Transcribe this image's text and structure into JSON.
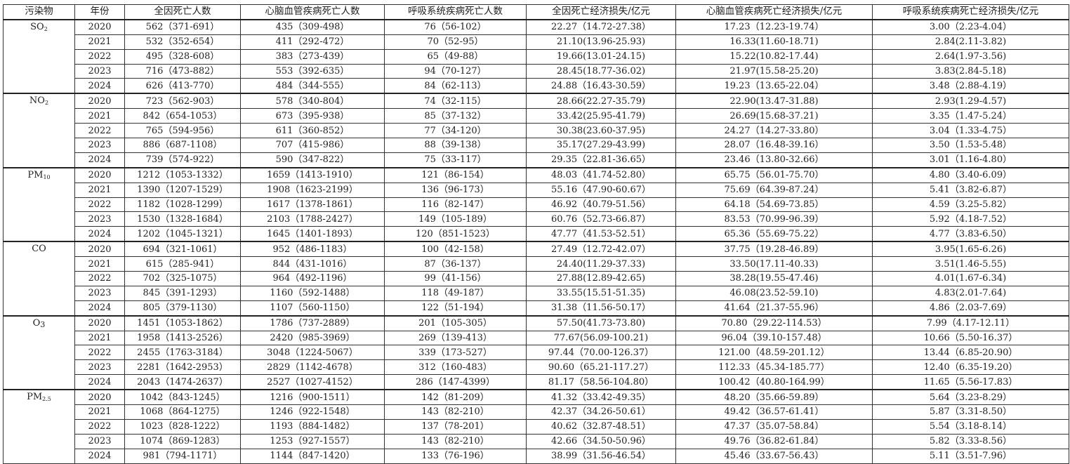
{
  "table": {
    "headers": [
      "污染物",
      "年份",
      "全因死亡人数",
      "心脑血管疾病死亡人数",
      "呼吸系统疾病死亡人数",
      "全因死亡经济损失/亿元",
      "心脑血管疾病死亡经济损失/亿元",
      "呼吸系统疾病死亡经济损失/亿元"
    ],
    "groups": [
      {
        "pollutant": {
          "base": "SO",
          "sub": "2"
        },
        "rows": [
          [
            "2020",
            "562（371-691）",
            "435（309-498）",
            "76（56-102）",
            "22.27（14.72-27.38）",
            "17.23（12.23-19.74）",
            "3.00（2.23-4.04）"
          ],
          [
            "2021",
            "532（352-654）",
            "411（292-472）",
            "70（52-95）",
            "21.10(13.96-25.93)",
            "16.33(11.60-18.71)",
            "2.84(2.11-3.82)"
          ],
          [
            "2022",
            "495（328-608）",
            "383（273-439）",
            "65（49-88）",
            "19.66(13.01-24.15)",
            "15.22(10.82-17.44)",
            "2.64(1.97-3.56)"
          ],
          [
            "2023",
            "716（473-882）",
            "553（392-635）",
            "94（70-127）",
            "28.45(18.77-36.02)",
            "21.97(15.58-25.20)",
            "3.83(2.84-5.18)"
          ],
          [
            "2024",
            "626（413-770）",
            "484（344-555）",
            "84（62-113）",
            "24.88（16.43-30.59）",
            "19.23（13.65-22.04）",
            "3.48（2.88-4.19）"
          ]
        ]
      },
      {
        "pollutant": {
          "base": "NO",
          "sub": "2"
        },
        "rows": [
          [
            "2020",
            "723（562-903）",
            "578（340-804）",
            "74（32-115）",
            "28.66(22.27-35.79)",
            "22.90(13.47-31.88)",
            "2.93(1.29-4.57)"
          ],
          [
            "2021",
            "842（654-1053）",
            "673（395-938）",
            "85（37-132）",
            "33.42(25.95-41.79)",
            "26.69(15.68-37.21)",
            "3.35（1.47-5.24）"
          ],
          [
            "2022",
            "765（594-956）",
            "611（360-852）",
            "77（34-120）",
            "30.38(23.60-37.95)",
            "24.27（14.27-33.80）",
            "3.04（1.33-4.75）"
          ],
          [
            "2023",
            "886（687-1108）",
            "707（415-986）",
            "88（39-138）",
            "35.17(27.29-43.99)",
            "28.07（16.48-39.16）",
            "3.50（1.53-5.48）"
          ],
          [
            "2024",
            "739（574-922）",
            "590（347-822）",
            "75（33-117）",
            "29.35（22.81-36.65）",
            "23.46（13.80-32.66）",
            "3.01（1.16-4.80）"
          ]
        ]
      },
      {
        "pollutant": {
          "base": "PM",
          "sub": "10"
        },
        "rows": [
          [
            "2020",
            "1212（1053-1332）",
            "1659（1413-1910）",
            "121（86-154）",
            "48.03（41.74-52.80）",
            "65.75（56.01-75.70）",
            "4.80（3.40-6.09）"
          ],
          [
            "2021",
            "1390（1207-1529）",
            "1908（1623-2199）",
            "136（96-173）",
            "55.16（47.90-60.67）",
            "75.69（64.39-87.24）",
            "5.41（3.82-6.87）"
          ],
          [
            "2022",
            "1182（1028-1299）",
            "1617（1378-1861）",
            "116（82-147）",
            "46.92（40.79-51.56）",
            "64.18（54.69-73.85）",
            "4.59（3.25-5.82）"
          ],
          [
            "2023",
            "1530（1328-1684）",
            "2103（1788-2427）",
            "149（105-189）",
            "60.76（52.73-66.87）",
            "83.53（70.99-96.39）",
            "5.92（4.18-7.52）"
          ],
          [
            "2024",
            "1202（1045-1321）",
            "1645（1401-1893）",
            "120（851-1523）",
            "47.77（41.53-52.51）",
            "65.36（55.69-75.22）",
            "4.77（3.83-6.50）"
          ]
        ]
      },
      {
        "pollutant": {
          "base": "CO",
          "sub": ""
        },
        "rows": [
          [
            "2020",
            "694（321-1061）",
            "952（486-1183）",
            "100（42-158）",
            "27.49（12.72-42.07）",
            "37.75（19.28-46.89）",
            "3.95(1.65-6.26)"
          ],
          [
            "2021",
            "615（285-941）",
            "844（431-1016）",
            "87（36-137）",
            "24.40(11.29-37.33)",
            "33.50(17.11-40.33)",
            "3.51(1.46-5.55)"
          ],
          [
            "2022",
            "702（325-1075）",
            "964（492-1196）",
            "99（41-156）",
            "27.88(12.89-42.65)",
            "38.28(19.55-47.46)",
            "4.01(1.67-6.34)"
          ],
          [
            "2023",
            "845（391-1293）",
            "1160（592-1488）",
            "118（49-187）",
            "33.55(15.51-51.35)",
            "46.08(23.52-59.10)",
            "4.83(2.01-7.64)"
          ],
          [
            "2024",
            "805（379-1130）",
            "1107（560-1150）",
            "122（51-194）",
            "31.38（11.56-50.17）",
            "41.64（21.37-55.96）",
            "4.86（2.03-7.69）"
          ]
        ]
      },
      {
        "pollutant": {
          "base": "O",
          "sub": "3"
        },
        "rows": [
          [
            "2020",
            "1451（1053-1862）",
            "1786（737-2889）",
            "201（105-305）",
            "57.50(41.73-73.80)",
            "70.80（29.22-114.53）",
            "7.99（4.17-12.11）"
          ],
          [
            "2021",
            "1958（1413-2526）",
            "2420（985-3969）",
            "269（139-413）",
            "77.67(56.09-100.21)",
            "96.04（39.10-157.48）",
            "10.66（5.50-16.37）"
          ],
          [
            "2022",
            "2455（1763-3184）",
            "3048（1224-5067）",
            "339（173-527）",
            "97.44（70.00-126.37）",
            "121.00（48.59-201.12）",
            "13.44（6.85-20.90）"
          ],
          [
            "2023",
            "2281（1642-2953）",
            "2829（1142-4678）",
            "312（160-483）",
            "90.60（65.21-117.27）",
            "112.33（45.34-185.77）",
            "12.40（6.35-19.20）"
          ],
          [
            "2024",
            "2043（1474-2637）",
            "2527（1027-4152）",
            "286（147-4399）",
            "81.17（58.56-104.80）",
            "100.42（40.80-164.99）",
            "11.65（5.56-17.83）"
          ]
        ]
      },
      {
        "pollutant": {
          "base": "PM",
          "sub": "2.5"
        },
        "rows": [
          [
            "2020",
            "1042（843-1245）",
            "1216（900-1511）",
            "142（81-209）",
            "41.32（33.42-49.35）",
            "48.20（35.66-59.89）",
            "5.64（3.23-8.29）"
          ],
          [
            "2021",
            "1068（864-1275）",
            "1246（922-1548）",
            "143（82-210）",
            "42.37（34.26-50.61）",
            "49.42（36.57-61.41）",
            "5.87（3.31-8.50）"
          ],
          [
            "2022",
            "1023（828-1222）",
            "1193（884-1482）",
            "137（78-201）",
            "40.62（32.87-48.51）",
            "47.37（35.07-58.84）",
            "5.54（3.18-8.14）"
          ],
          [
            "2023",
            "1074（869-1283）",
            "1253（927-1557）",
            "143（82-210）",
            "42.66（34.50-50.96）",
            "49.76（36.82-61.84）",
            "5.82（3.33-8.56）"
          ],
          [
            "2024",
            "981（794-1171）",
            "1144（847-1420）",
            "133（76-196）",
            "38.99（31.56-46.54）",
            "45.46（33.67-56.43）",
            "5.11（3.51-7.96）"
          ]
        ]
      }
    ]
  }
}
